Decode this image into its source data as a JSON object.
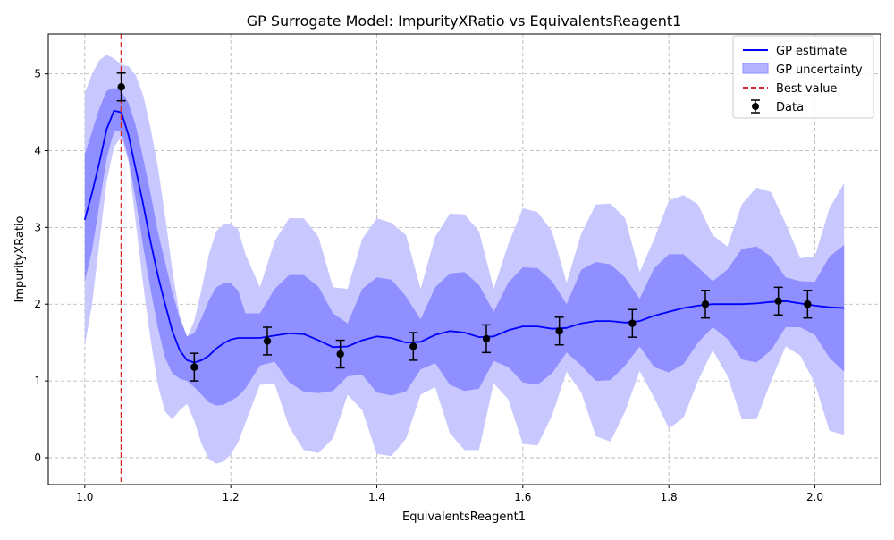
{
  "chart_data": {
    "type": "line",
    "title": "GP Surrogate Model: ImpurityXRatio vs EquivalentsReagent1",
    "xlabel": "EquivalentsReagent1",
    "ylabel": "ImpurityXRatio",
    "xlim": [
      0.95,
      2.09
    ],
    "ylim": [
      -0.35,
      5.52
    ],
    "xticks": [
      1.0,
      1.2,
      1.4,
      1.6,
      1.8,
      2.0
    ],
    "xtick_labels": [
      "1.0",
      "1.2",
      "1.4",
      "1.6",
      "1.8",
      "2.0"
    ],
    "yticks": [
      0,
      1,
      2,
      3,
      4,
      5
    ],
    "ytick_labels": [
      "0",
      "1",
      "2",
      "3",
      "4",
      "5"
    ],
    "grid": true,
    "legend_position": "top-right",
    "legend": {
      "gp_estimate": "GP estimate",
      "gp_uncertainty": "GP uncertainty",
      "best_value": "Best value",
      "data": "Data"
    },
    "colors": {
      "estimate": "#0000ff",
      "band_inner": "#8f8fff",
      "band_outer": "#c8c8ff",
      "best": "#d62728",
      "data": "#000000"
    },
    "best_value_x": 1.05,
    "gp_estimate": {
      "x": [
        1.0,
        1.01,
        1.02,
        1.03,
        1.04,
        1.05,
        1.06,
        1.07,
        1.08,
        1.09,
        1.1,
        1.11,
        1.12,
        1.13,
        1.14,
        1.15,
        1.16,
        1.17,
        1.18,
        1.19,
        1.2,
        1.21,
        1.22,
        1.24,
        1.26,
        1.28,
        1.3,
        1.32,
        1.34,
        1.36,
        1.38,
        1.4,
        1.42,
        1.44,
        1.46,
        1.48,
        1.5,
        1.52,
        1.54,
        1.56,
        1.58,
        1.6,
        1.62,
        1.64,
        1.66,
        1.68,
        1.7,
        1.72,
        1.74,
        1.76,
        1.78,
        1.8,
        1.82,
        1.84,
        1.86,
        1.88,
        1.9,
        1.92,
        1.94,
        1.96,
        1.98,
        2.0,
        2.02,
        2.04
      ],
      "y": [
        3.1,
        3.45,
        3.85,
        4.28,
        4.52,
        4.5,
        4.2,
        3.75,
        3.3,
        2.82,
        2.38,
        2.0,
        1.65,
        1.4,
        1.27,
        1.24,
        1.27,
        1.33,
        1.42,
        1.49,
        1.54,
        1.56,
        1.56,
        1.56,
        1.59,
        1.62,
        1.61,
        1.53,
        1.44,
        1.45,
        1.53,
        1.58,
        1.56,
        1.5,
        1.51,
        1.6,
        1.65,
        1.63,
        1.57,
        1.58,
        1.66,
        1.71,
        1.71,
        1.68,
        1.69,
        1.75,
        1.78,
        1.78,
        1.76,
        1.78,
        1.85,
        1.9,
        1.95,
        1.98,
        2.0,
        2.0,
        2.0,
        2.01,
        2.03,
        2.04,
        2.01,
        1.98,
        1.96,
        1.95
      ],
      "inner_lower": [
        2.3,
        2.7,
        3.3,
        3.9,
        4.25,
        4.25,
        3.9,
        3.35,
        2.75,
        2.2,
        1.7,
        1.3,
        1.1,
        1.03,
        1.0,
        0.92,
        0.82,
        0.72,
        0.68,
        0.69,
        0.74,
        0.8,
        0.9,
        1.2,
        1.25,
        0.98,
        0.86,
        0.84,
        0.87,
        1.06,
        1.08,
        0.85,
        0.81,
        0.86,
        1.15,
        1.23,
        0.95,
        0.87,
        0.9,
        1.26,
        1.18,
        0.98,
        0.95,
        1.1,
        1.37,
        1.2,
        1.0,
        1.01,
        1.2,
        1.45,
        1.18,
        1.11,
        1.22,
        1.5,
        1.7,
        1.55,
        1.28,
        1.24,
        1.4,
        1.7,
        1.7,
        1.6,
        1.3,
        1.12
      ],
      "inner_upper": [
        3.95,
        4.25,
        4.55,
        4.78,
        4.82,
        4.78,
        4.62,
        4.32,
        3.9,
        3.45,
        2.95,
        2.55,
        2.15,
        1.82,
        1.58,
        1.62,
        1.82,
        2.05,
        2.22,
        2.27,
        2.27,
        2.18,
        1.88,
        1.88,
        2.2,
        2.38,
        2.38,
        2.23,
        1.88,
        1.75,
        2.2,
        2.35,
        2.32,
        2.1,
        1.8,
        2.22,
        2.4,
        2.42,
        2.25,
        1.9,
        2.28,
        2.48,
        2.47,
        2.3,
        2.0,
        2.45,
        2.55,
        2.52,
        2.35,
        2.07,
        2.47,
        2.65,
        2.65,
        2.48,
        2.3,
        2.45,
        2.72,
        2.75,
        2.62,
        2.35,
        2.3,
        2.29,
        2.62,
        2.77
      ],
      "outer_lower": [
        1.45,
        2.0,
        2.8,
        3.6,
        4.05,
        4.18,
        3.85,
        3.05,
        2.25,
        1.55,
        0.95,
        0.6,
        0.5,
        0.62,
        0.7,
        0.48,
        0.18,
        -0.02,
        -0.08,
        -0.05,
        0.04,
        0.2,
        0.45,
        0.95,
        0.96,
        0.4,
        0.1,
        0.06,
        0.25,
        0.82,
        0.62,
        0.05,
        0.02,
        0.25,
        0.82,
        0.92,
        0.32,
        0.1,
        0.1,
        0.97,
        0.76,
        0.18,
        0.16,
        0.55,
        1.12,
        0.85,
        0.28,
        0.21,
        0.6,
        1.13,
        0.78,
        0.38,
        0.52,
        1.0,
        1.4,
        1.07,
        0.5,
        0.5,
        1.0,
        1.45,
        1.33,
        0.97,
        0.35,
        0.3
      ],
      "outer_upper": [
        4.75,
        5.0,
        5.18,
        5.25,
        5.2,
        5.12,
        5.1,
        4.98,
        4.72,
        4.3,
        3.8,
        3.15,
        2.45,
        1.85,
        1.57,
        1.78,
        2.2,
        2.65,
        2.95,
        3.04,
        3.04,
        2.98,
        2.65,
        2.22,
        2.82,
        3.12,
        3.12,
        2.88,
        2.22,
        2.2,
        2.85,
        3.12,
        3.06,
        2.9,
        2.2,
        2.88,
        3.18,
        3.17,
        2.95,
        2.2,
        2.78,
        3.25,
        3.2,
        2.95,
        2.28,
        2.92,
        3.3,
        3.31,
        3.12,
        2.42,
        2.85,
        3.35,
        3.42,
        3.3,
        2.9,
        2.75,
        3.3,
        3.52,
        3.46,
        3.05,
        2.6,
        2.62,
        3.25,
        3.58
      ]
    },
    "data_points": {
      "x": [
        1.05,
        1.15,
        1.25,
        1.35,
        1.45,
        1.55,
        1.65,
        1.75,
        1.85,
        1.95,
        1.99
      ],
      "y": [
        4.83,
        1.18,
        1.52,
        1.35,
        1.45,
        1.55,
        1.65,
        1.75,
        2.0,
        2.04,
        2.0
      ],
      "error": [
        0.18,
        0.18,
        0.18,
        0.18,
        0.18,
        0.18,
        0.18,
        0.18,
        0.18,
        0.18,
        0.18
      ]
    }
  }
}
